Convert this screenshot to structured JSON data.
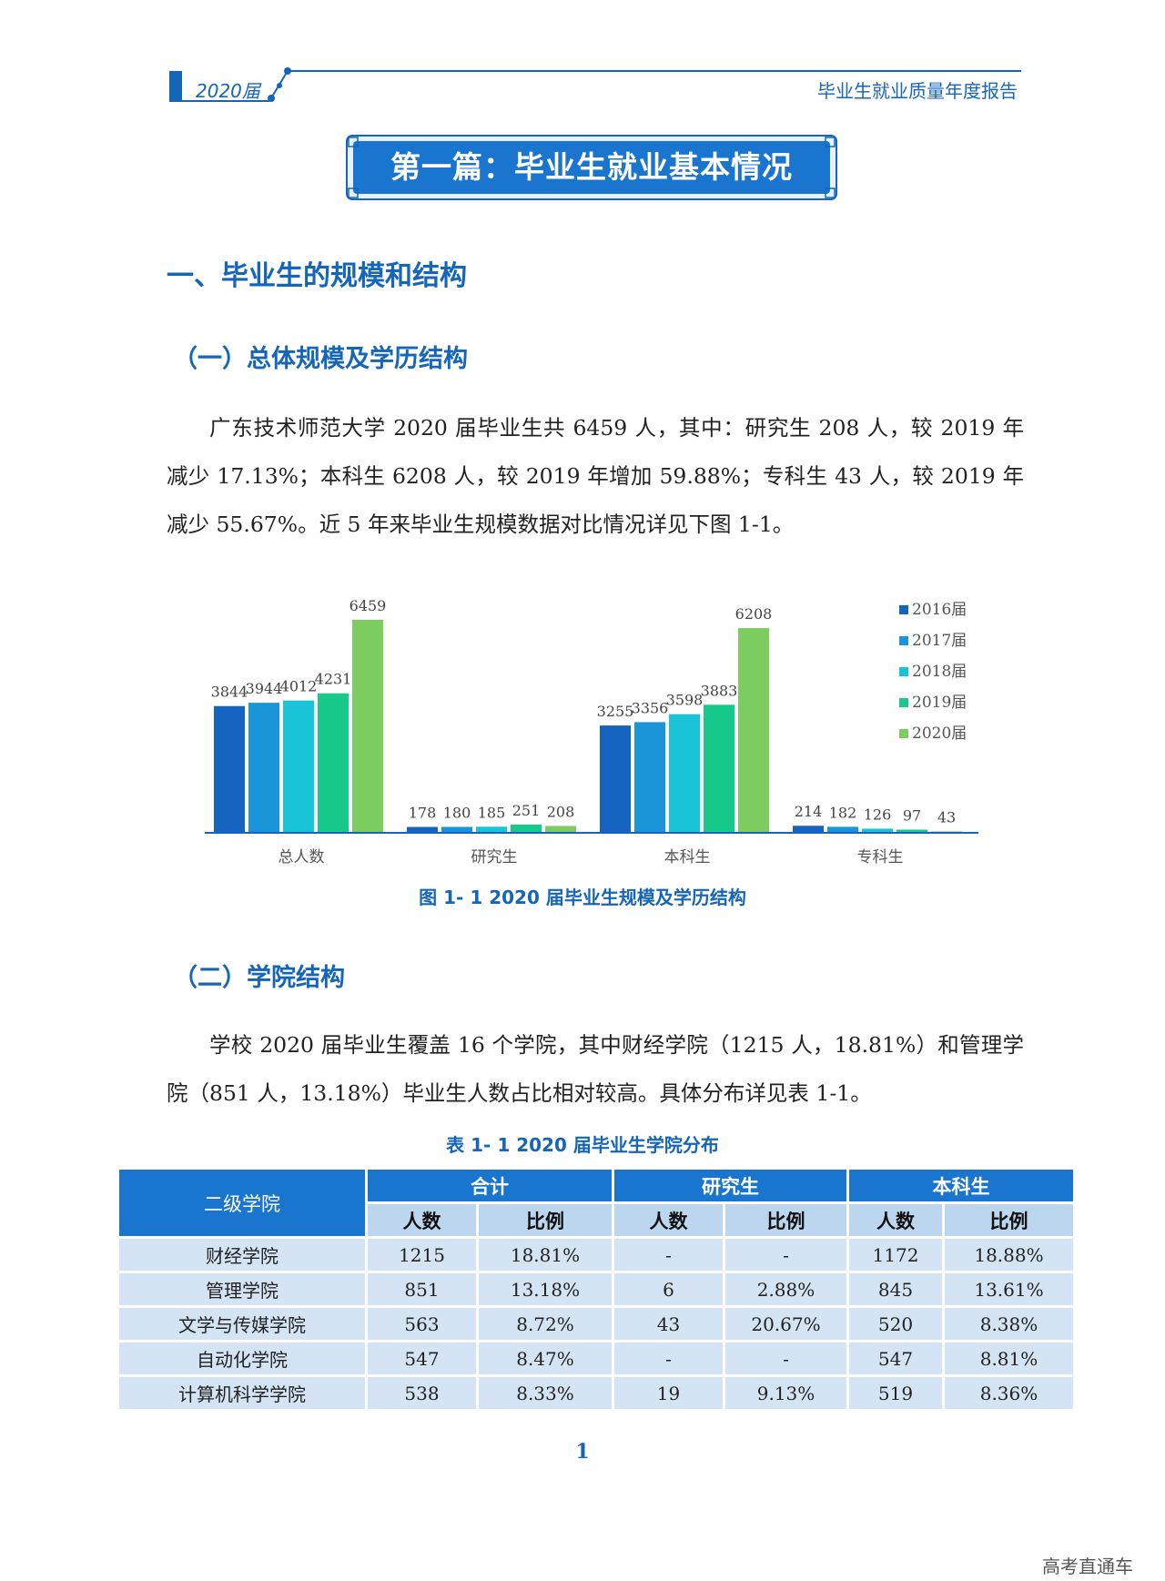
{
  "header": {
    "year_label": "2020届",
    "report_title": "毕业生就业质量年度报告"
  },
  "banner": {
    "title": "第一篇：毕业生就业基本情况"
  },
  "section1": {
    "heading": "一、毕业生的规模和结构"
  },
  "sub1": {
    "heading": "（一）总体规模及学历结构",
    "paragraph": "广东技术师范大学 2020 届毕业生共 6459 人，其中：研究生 208 人，较 2019 年减少 17.13%；本科生 6208 人，较 2019 年增加 59.88%；专科生 43 人，较 2019 年减少 55.67%。近 5 年来毕业生规模数据对比情况详见下图 1-1。",
    "figure_caption": "图 1- 1    2020 届毕业生规模及学历结构"
  },
  "chart_data": {
    "type": "bar",
    "title": "",
    "categories": [
      "总人数",
      "研究生",
      "本科生",
      "专科生"
    ],
    "series": [
      {
        "name": "2016届",
        "color": "#1565c0",
        "values": [
          3844,
          178,
          3255,
          214
        ]
      },
      {
        "name": "2017届",
        "color": "#1a96d8",
        "values": [
          3944,
          180,
          3356,
          182
        ]
      },
      {
        "name": "2018届",
        "color": "#19c4d9",
        "values": [
          4012,
          185,
          3598,
          126
        ]
      },
      {
        "name": "2019届",
        "color": "#17ca8b",
        "values": [
          4231,
          251,
          3883,
          97
        ]
      },
      {
        "name": "2020届",
        "color": "#7ccc60",
        "values": [
          6459,
          208,
          6208,
          43
        ]
      }
    ],
    "ylim": [
      0,
      6900
    ],
    "legend": "right",
    "grid": false
  },
  "sub2": {
    "heading": "（二）学院结构",
    "paragraph": "学校 2020 届毕业生覆盖 16 个学院，其中财经学院（1215 人，18.81%）和管理学院（851 人，13.18%）毕业生人数占比相对较高。具体分布详见表 1-1。",
    "table_caption": "表 1- 1    2020 届毕业生学院分布"
  },
  "table": {
    "col_college": "二级学院",
    "groups": [
      "合计",
      "研究生",
      "本科生"
    ],
    "sub_count": "人数",
    "sub_ratio": "比例",
    "rows": [
      {
        "name": "财经学院",
        "total_n": "1215",
        "total_p": "18.81%",
        "grad_n": "-",
        "grad_p": "-",
        "ug_n": "1172",
        "ug_p": "18.88%"
      },
      {
        "name": "管理学院",
        "total_n": "851",
        "total_p": "13.18%",
        "grad_n": "6",
        "grad_p": "2.88%",
        "ug_n": "845",
        "ug_p": "13.61%"
      },
      {
        "name": "文学与传媒学院",
        "total_n": "563",
        "total_p": "8.72%",
        "grad_n": "43",
        "grad_p": "20.67%",
        "ug_n": "520",
        "ug_p": "8.38%"
      },
      {
        "name": "自动化学院",
        "total_n": "547",
        "total_p": "8.47%",
        "grad_n": "-",
        "grad_p": "-",
        "ug_n": "547",
        "ug_p": "8.81%"
      },
      {
        "name": "计算机科学学院",
        "total_n": "538",
        "total_p": "8.33%",
        "grad_n": "19",
        "grad_p": "9.13%",
        "ug_n": "519",
        "ug_p": "8.36%"
      }
    ]
  },
  "footer": {
    "page_number": "1",
    "watermark": "高考直通车"
  }
}
